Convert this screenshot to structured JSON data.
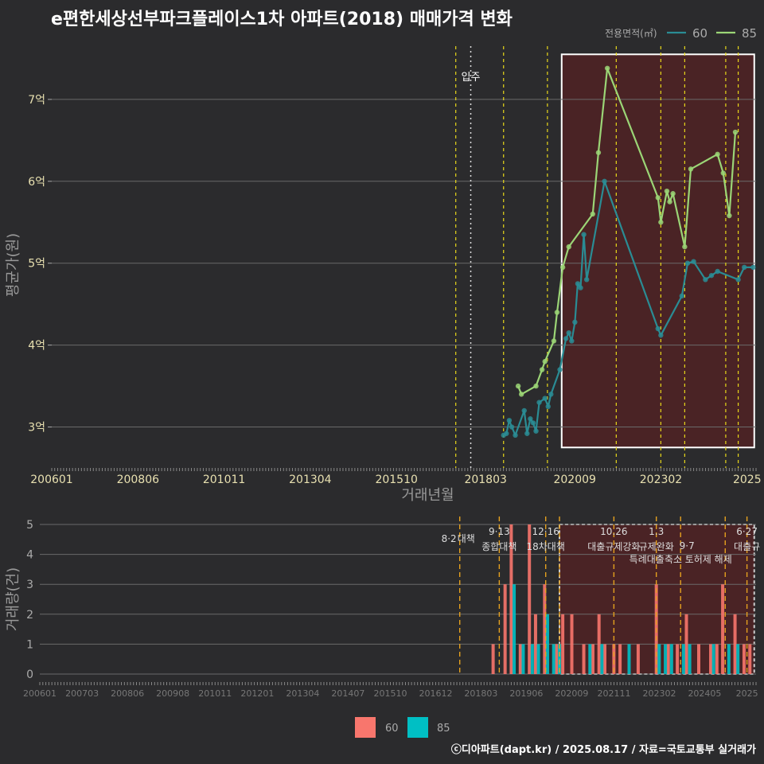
{
  "title": "e편한세상선부파크플레이스1차 아파트(2018) 매매가격 변화",
  "footer": "ⓒ디아파트(dapt.kr) / 2025.08.17 / 자료=국토교통부 실거래가",
  "colors": {
    "bg": "#2b2b2d",
    "s60": "#2a8c94",
    "s85": "#9bd576",
    "bar60": "#f8766d",
    "bar85": "#00bfc4",
    "policy": "#e8d81a",
    "policy_bottom": "#e5a11f",
    "shade": "#4a2325"
  },
  "chart_data": [
    {
      "type": "line",
      "title": "e편한세상선부파크플레이스1차 아파트(2018) 매매가격 변화",
      "xlabel": "거래년월",
      "ylabel": "평균가(원)",
      "xlim": [
        2006.0,
        2025.75
      ],
      "ylim": [
        2.5,
        7.65
      ],
      "x_ticks": [
        2006.0,
        2008.4167,
        2010.8333,
        2013.25,
        2015.6667,
        2018.1667,
        2020.6667,
        2023.0833,
        2025.5
      ],
      "x_tick_labels": [
        "200601",
        "200806",
        "201011",
        "201304",
        "201510",
        "201803",
        "202009",
        "202302",
        "2025"
      ],
      "y_ticks": [
        3,
        4,
        5,
        6,
        7
      ],
      "y_tick_labels": [
        "3억",
        "4억",
        "5억",
        "6억",
        "7억"
      ],
      "legend_title": "전용면적(㎡)",
      "legend_position": "top-right",
      "move_in_label": "입주",
      "move_in_x": 2017.75,
      "policy_lines": [
        2017.33,
        2018.67,
        2019.9,
        2021.83,
        2023.08,
        2023.75,
        2024.9,
        2025.25
      ],
      "shade_range": [
        2020.3,
        2025.7,
        2.75,
        7.55
      ],
      "series": [
        {
          "name": "60",
          "x": [
            2018.67,
            2018.75,
            2018.83,
            2018.9,
            2019.0,
            2019.25,
            2019.33,
            2019.42,
            2019.5,
            2019.58,
            2019.67,
            2019.83,
            2019.92,
            2020.0,
            2020.25,
            2020.42,
            2020.5,
            2020.58,
            2020.67,
            2020.75,
            2020.83,
            2020.92,
            2021.0,
            2021.5,
            2023.0,
            2023.08,
            2023.67,
            2023.83,
            2024.0,
            2024.33,
            2024.5,
            2024.67,
            2025.25,
            2025.42,
            2025.67
          ],
          "values": [
            2.9,
            2.92,
            3.08,
            3.0,
            2.9,
            3.2,
            2.92,
            3.1,
            3.05,
            2.95,
            3.3,
            3.35,
            3.25,
            3.4,
            3.7,
            4.08,
            4.15,
            4.05,
            4.28,
            4.75,
            4.7,
            5.35,
            4.8,
            6.0,
            4.2,
            4.12,
            4.6,
            5.0,
            5.02,
            4.8,
            4.85,
            4.9,
            4.8,
            4.95,
            4.95
          ]
        },
        {
          "name": "85",
          "x": [
            2019.08,
            2019.17,
            2019.58,
            2019.75,
            2019.83,
            2020.08,
            2020.17,
            2020.33,
            2020.5,
            2021.17,
            2021.33,
            2021.58,
            2023.0,
            2023.08,
            2023.25,
            2023.33,
            2023.42,
            2023.75,
            2023.92,
            2024.67,
            2024.83,
            2025.0,
            2025.17
          ],
          "values": [
            3.5,
            3.4,
            3.5,
            3.7,
            3.8,
            4.05,
            4.4,
            4.95,
            5.2,
            5.6,
            6.35,
            7.38,
            5.8,
            5.5,
            5.88,
            5.75,
            5.85,
            5.2,
            6.15,
            6.33,
            6.1,
            5.58,
            6.6
          ]
        }
      ]
    },
    {
      "type": "bar",
      "xlabel": "",
      "ylabel": "거래량(건)",
      "xlim": [
        2006.0,
        2025.75
      ],
      "ylim": [
        0,
        5
      ],
      "y_ticks": [
        0,
        1,
        2,
        3,
        4,
        5
      ],
      "y_tick_labels": [
        "0",
        "1",
        "2",
        "3",
        "4",
        "5"
      ],
      "x_ticks": [
        2006.0,
        2007.1667,
        2008.4167,
        2009.6667,
        2010.8333,
        2012.0,
        2013.25,
        2014.5,
        2015.6667,
        2016.9167,
        2018.1667,
        2019.4167,
        2020.6667,
        2021.8333,
        2023.0833,
        2024.3333,
        2025.5
      ],
      "x_tick_labels": [
        "200601",
        "200703",
        "200806",
        "200908",
        "201011",
        "201201",
        "201304",
        "201407",
        "201510",
        "201612",
        "201803",
        "201906",
        "202009",
        "202111",
        "202302",
        "202405",
        "2025"
      ],
      "policy_lines": [
        2017.58,
        2018.67,
        2019.95,
        2020.33,
        2021.83,
        2023.0,
        2023.67,
        2024.9,
        2025.5
      ],
      "policy_labels": [
        {
          "date": "8·2",
          "text": "대책",
          "x": 2017.58,
          "row": 1
        },
        {
          "date": "9·13",
          "text": "종합대책",
          "x": 2018.67,
          "row": 0
        },
        {
          "date": "12·16",
          "text": "18차대책",
          "x": 2019.95,
          "row": 0
        },
        {
          "date": "10.26",
          "text": "대출규제강화",
          "x": 2021.83,
          "row": 0
        },
        {
          "date": "1.3",
          "text": "규제완화",
          "x": 2023.0,
          "row": 0
        },
        {
          "date": "9·7",
          "text": "특례대출축소 토허제 해제",
          "x": 2023.67,
          "row": 1
        },
        {
          "date": "6·27",
          "text": "대출규",
          "x": 2025.5,
          "row": 0
        }
      ],
      "shade_range": [
        2020.33,
        2025.7
      ],
      "series": [
        {
          "name": "60",
          "x": [
            2018.5,
            2018.83,
            2019.0,
            2019.25,
            2019.5,
            2019.67,
            2019.92,
            2020.25,
            2020.42,
            2020.67,
            2021.0,
            2021.25,
            2021.42,
            2021.58,
            2021.83,
            2022.0,
            2022.5,
            2023.0,
            2023.33,
            2023.58,
            2023.83,
            2024.17,
            2024.5,
            2024.67,
            2024.83,
            2025.17,
            2025.42,
            2025.58
          ],
          "values": [
            1,
            3,
            5,
            1,
            5,
            2,
            3,
            1,
            2,
            2,
            1,
            1,
            2,
            1,
            1,
            1,
            1,
            3,
            1,
            1,
            2,
            1,
            1,
            1,
            3,
            2,
            1,
            1
          ]
        },
        {
          "name": "85",
          "x": [
            2019.08,
            2019.33,
            2019.58,
            2019.75,
            2020.0,
            2020.17,
            2020.33,
            2021.17,
            2021.5,
            2022.25,
            2023.08,
            2023.25,
            2023.42,
            2023.75,
            2023.92,
            2024.58,
            2025.0,
            2025.25
          ],
          "values": [
            3,
            1,
            1,
            1,
            2,
            1,
            1,
            1,
            1,
            1,
            1,
            1,
            1,
            1,
            1,
            1,
            1,
            1
          ]
        }
      ],
      "legend": [
        {
          "name": "60"
        },
        {
          "name": "85"
        }
      ]
    }
  ]
}
